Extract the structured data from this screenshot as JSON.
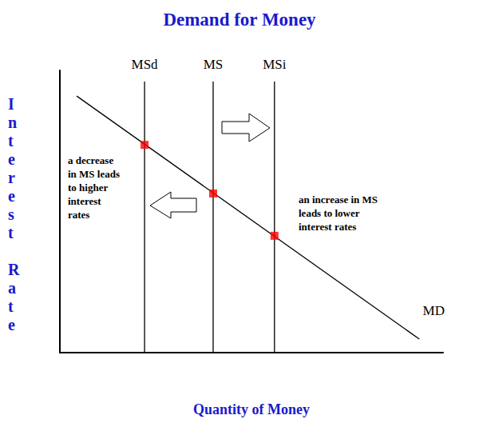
{
  "chart_data": {
    "type": "line",
    "title": "Demand for Money",
    "x_label": "Quantity of Money",
    "y_label": "Interest Rate",
    "xlim": [
      0,
      10
    ],
    "ylim": [
      0,
      10
    ],
    "tick_labels": false,
    "grid": false,
    "series": [
      {
        "name": "MD",
        "color": "#000000",
        "x": [
          0.44,
          9.38
        ],
        "values": [
          9.09,
          0.48
        ]
      },
      {
        "name": "MSd",
        "color": "#000000",
        "x": [
          2.21,
          2.21
        ],
        "values": [
          0,
          9.6
        ]
      },
      {
        "name": "MS",
        "color": "#000000",
        "x": [
          4.0,
          4.0
        ],
        "values": [
          0,
          9.6
        ]
      },
      {
        "name": "MSi",
        "color": "#000000",
        "x": [
          5.6,
          5.6
        ],
        "values": [
          0,
          9.6
        ]
      },
      {
        "type": "scatter",
        "marker": "square",
        "color": "#ff0000",
        "x": [
          2.21,
          4.0,
          5.6
        ],
        "values": [
          7.36,
          5.64,
          4.14
        ]
      }
    ],
    "annotations": [
      "a decrease\nin MS leads\nto higher\ninterest\nrates",
      "an increase in MS\nleads to lower\ninterest rates"
    ]
  }
}
